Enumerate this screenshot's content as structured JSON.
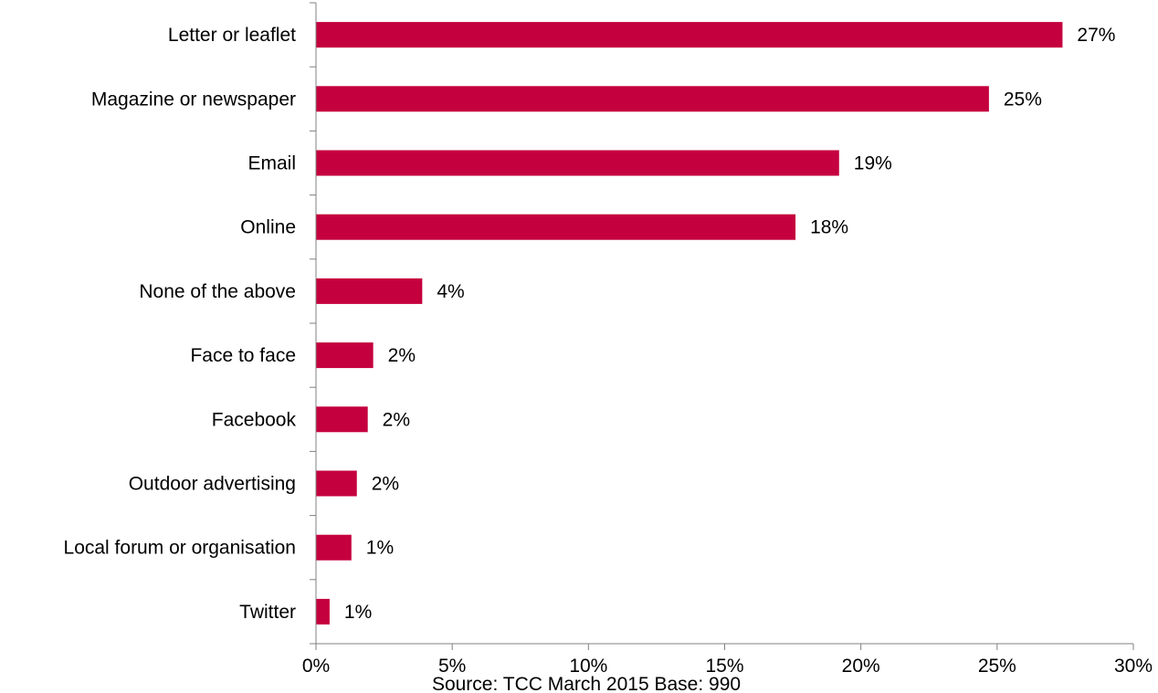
{
  "chart_data": {
    "type": "bar",
    "orientation": "horizontal",
    "categories": [
      "Letter or leaflet",
      "Magazine or newspaper",
      "Email",
      "Online",
      "None of the above",
      "Face to face",
      "Facebook",
      "Outdoor advertising",
      "Local forum or organisation",
      "Twitter"
    ],
    "values": [
      27.4,
      24.7,
      19.2,
      17.6,
      3.9,
      2.1,
      1.9,
      1.5,
      1.3,
      0.5
    ],
    "value_labels": [
      "27%",
      "25%",
      "19%",
      "18%",
      "4%",
      "2%",
      "2%",
      "2%",
      "1%",
      "1%"
    ],
    "xlim": [
      0,
      30
    ],
    "xticks": [
      0,
      5,
      10,
      15,
      20,
      25,
      30
    ],
    "xtick_labels": [
      "0%",
      "5%",
      "10%",
      "15%",
      "20%",
      "25%",
      "30%"
    ],
    "bar_color": "#c5003e",
    "grid": false,
    "legend": "none",
    "source_note": "Source: TCC March 2015 Base: 990"
  }
}
